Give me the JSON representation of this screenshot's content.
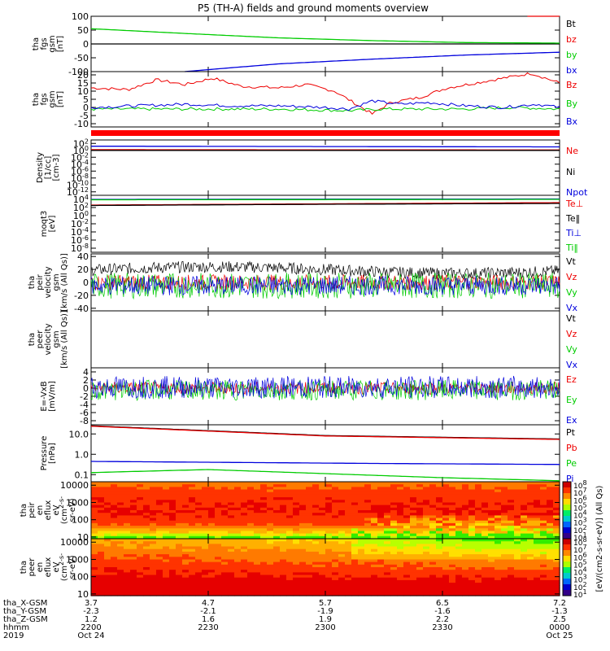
{
  "title": "P5 (TH-A) fields and ground moments overview",
  "colors": {
    "black": "#000000",
    "red": "#ee0000",
    "green": "#00cc00",
    "blue": "#0000dd",
    "red_bar": "#ff0000"
  },
  "colorbar_label": "[eV/(cm2-s-sr-eV)] (All Qs)",
  "colorbar_ticks": [
    "10^8",
    "10^7",
    "10^6",
    "10^5",
    "10^4",
    "10^3",
    "10^2",
    "10^1"
  ],
  "footer": {
    "row_labels": [
      "tha_X-GSM",
      "tha_Y-GSM",
      "tha_Z-GSM",
      "hhmm",
      "2019"
    ],
    "columns": [
      {
        "values": [
          "3.7",
          "-2.3",
          "1.2",
          "2200",
          "Oct 24"
        ]
      },
      {
        "values": [
          "4.7",
          "-2.1",
          "1.6",
          "2230",
          ""
        ]
      },
      {
        "values": [
          "5.7",
          "-1.9",
          "1.9",
          "2300",
          ""
        ]
      },
      {
        "values": [
          "6.5",
          "-1.6",
          "2.2",
          "2330",
          ""
        ]
      },
      {
        "values": [
          "7.2",
          "-1.3",
          "2.5",
          "0000",
          "Oct 25"
        ]
      }
    ]
  },
  "chart_data": [
    {
      "type": "line",
      "ylabel": [
        "tha",
        "fgs",
        "gsm",
        "[nT]"
      ],
      "ylim": [
        -100,
        100
      ],
      "ytick_values": [
        100,
        50,
        0,
        -50,
        -100
      ],
      "ytick_labels": [
        "100",
        "50",
        "0",
        "-50",
        "-100"
      ],
      "series": [
        {
          "name": "Bt",
          "color": "#000000",
          "x": [
            0,
            1
          ],
          "y": [
            0,
            0
          ]
        },
        {
          "name": "bz",
          "color": "#ee0000",
          "x": [
            0.93,
            1
          ],
          "y": [
            100,
            100
          ]
        },
        {
          "name": "by",
          "color": "#00cc00",
          "x": [
            0,
            0.2,
            0.4,
            0.6,
            0.8,
            1
          ],
          "y": [
            55,
            38,
            22,
            12,
            5,
            3
          ]
        },
        {
          "name": "bx",
          "color": "#0000dd",
          "x": [
            0.2,
            0.4,
            0.6,
            0.8,
            1
          ],
          "y": [
            -100,
            -72,
            -55,
            -40,
            -30
          ]
        }
      ]
    },
    {
      "type": "line",
      "ylabel": [
        "tha",
        "fgs",
        "gsm",
        "[nT]"
      ],
      "ylim": [
        -12,
        22
      ],
      "ytick_values": [
        20,
        15,
        10,
        5,
        0,
        -5,
        -10
      ],
      "ytick_labels": [
        "20",
        "15",
        "10",
        "5",
        "0",
        "-5",
        "-10"
      ],
      "series": [
        {
          "name": "Bz",
          "color": "#ee0000",
          "x": [
            0,
            0.08,
            0.14,
            0.2,
            0.26,
            0.32,
            0.4,
            0.46,
            0.52,
            0.56,
            0.6,
            0.64,
            0.7,
            0.76,
            0.82,
            0.88,
            0.94,
            1
          ],
          "y": [
            12,
            11,
            17,
            14,
            18,
            13,
            12,
            14,
            10,
            3,
            -4,
            3,
            6,
            12,
            15,
            18,
            21,
            15
          ]
        },
        {
          "name": "By",
          "color": "#00cc00",
          "x": [
            0,
            0.2,
            0.4,
            0.55,
            0.62,
            0.7,
            0.8,
            0.9,
            1
          ],
          "y": [
            -1,
            -1,
            -1,
            -2,
            -1,
            -1,
            -1,
            0,
            -1
          ]
        },
        {
          "name": "Bx",
          "color": "#0000dd",
          "x": [
            0,
            0.1,
            0.2,
            0.3,
            0.4,
            0.5,
            0.55,
            0.6,
            0.66,
            0.72,
            0.8,
            0.88,
            0.95,
            1
          ],
          "y": [
            0,
            1,
            2,
            1,
            1,
            0,
            -1,
            4,
            2,
            3,
            1,
            0,
            2,
            0
          ]
        }
      ]
    },
    {
      "type": "line",
      "ylabel": [
        "Density",
        "[1/cc]",
        "[cm-3]"
      ],
      "ylim": [
        -13,
        3
      ],
      "ytick_values": [
        2,
        0,
        -2,
        -4,
        -6,
        -8,
        -10,
        -12
      ],
      "ytick_labels": [
        "10^2",
        "10^0",
        "10^-2",
        "10^-4",
        "10^-6",
        "10^-8",
        "10^-10",
        "10^-12"
      ],
      "yscale": "log",
      "series": [
        {
          "name": "Ne",
          "color": "#ee0000",
          "x": [
            0,
            1
          ],
          "y": [
            0.2,
            0.1
          ]
        },
        {
          "name": "Ni",
          "color": "#000000",
          "x": [
            0,
            1
          ],
          "y": [
            0,
            0
          ]
        },
        {
          "name": "Npot",
          "color": "#0000dd",
          "x": [
            0,
            1
          ],
          "y": [
            1.2,
            1.0
          ]
        }
      ]
    },
    {
      "type": "line",
      "ylabel": [
        "moqt3",
        "[eV]"
      ],
      "ylim": [
        -9,
        5
      ],
      "ytick_values": [
        4,
        2,
        0,
        -2,
        -4,
        -6,
        -8
      ],
      "ytick_labels": [
        "10^4",
        "10^2",
        "10^0",
        "10^-2",
        "10^-4",
        "10^-6",
        "10^-8"
      ],
      "yscale": "log",
      "series": [
        {
          "name": "Te⊥",
          "color": "#ee0000",
          "x": [
            0,
            0.5,
            1
          ],
          "y": [
            2.6,
            2.9,
            3.2
          ]
        },
        {
          "name": "Te‖",
          "color": "#000000",
          "x": [
            0,
            0.5,
            1
          ],
          "y": [
            2.5,
            2.8,
            3.0
          ]
        },
        {
          "name": "Ti⊥",
          "color": "#0000dd",
          "x": [
            0,
            1
          ],
          "y": [
            4,
            4.1
          ]
        },
        {
          "name": "Ti‖",
          "color": "#00cc00",
          "x": [
            0,
            1
          ],
          "y": [
            3.9,
            4.0
          ]
        }
      ]
    },
    {
      "type": "line",
      "ylabel": [
        "tha",
        "peir",
        "velocity",
        "gsm",
        "[km/s (All Qs)]"
      ],
      "ylim": [
        -44,
        44
      ],
      "ytick_values": [
        40,
        20,
        0,
        -20,
        -40
      ],
      "ytick_labels": [
        "40",
        "20",
        "0",
        "-20",
        "-40"
      ],
      "series": [
        {
          "name": "Vt",
          "color": "#000000",
          "noise": [
            10,
            28
          ]
        },
        {
          "name": "Vz",
          "color": "#ee0000",
          "noise": [
            -12,
            12
          ]
        },
        {
          "name": "Vy",
          "color": "#00cc00",
          "noise": [
            -25,
            15
          ]
        },
        {
          "name": "Vx",
          "color": "#0000dd",
          "noise": [
            -20,
            10
          ]
        }
      ]
    },
    {
      "type": "line",
      "ylabel": [
        "tha",
        "peer",
        "velocity",
        "gsm",
        "[km/s (All Qs)]"
      ],
      "ylim": [
        -1,
        1
      ],
      "ytick_values": [],
      "ytick_labels": [],
      "series": [
        {
          "name": "Vt",
          "color": "#000000"
        },
        {
          "name": "Vz",
          "color": "#ee0000"
        },
        {
          "name": "Vy",
          "color": "#00cc00"
        },
        {
          "name": "Vx",
          "color": "#0000dd"
        }
      ]
    },
    {
      "type": "line",
      "ylabel": [
        "E=-VxB",
        "[mV/m]"
      ],
      "ylim": [
        -9,
        5
      ],
      "ytick_values": [
        4,
        2,
        0,
        -2,
        -4,
        -6,
        -8
      ],
      "ytick_labels": [
        "4",
        "2",
        "0",
        "-2",
        "-4",
        "-6",
        "-8"
      ],
      "series": [
        {
          "name": "Ez",
          "color": "#ee0000",
          "noise": [
            -1.5,
            1.5
          ]
        },
        {
          "name": "Ey",
          "color": "#00cc00",
          "noise": [
            -3,
            2
          ]
        },
        {
          "name": "Ex",
          "color": "#0000dd",
          "noise": [
            -2.5,
            3
          ]
        }
      ]
    },
    {
      "type": "line",
      "ylabel": [
        "Pressure",
        "[nPa]"
      ],
      "ylim": [
        -1.35,
        1.45
      ],
      "ytick_values": [
        1,
        0,
        -1
      ],
      "ytick_labels": [
        "10.0",
        "1.0",
        "0.1"
      ],
      "yscale": "log",
      "series": [
        {
          "name": "Pt",
          "color": "#000000",
          "x": [
            0,
            0.5,
            1
          ],
          "y": [
            1.4,
            0.92,
            0.75
          ]
        },
        {
          "name": "Pb",
          "color": "#ee0000",
          "x": [
            0,
            0.5,
            1
          ],
          "y": [
            1.38,
            0.9,
            0.73
          ]
        },
        {
          "name": "Pe",
          "color": "#00cc00",
          "x": [
            0,
            0.25,
            0.5,
            0.75,
            1
          ],
          "y": [
            -0.9,
            -0.75,
            -0.95,
            -1.15,
            -1.3
          ]
        },
        {
          "name": "Pi",
          "color": "#0000dd",
          "x": [
            0,
            0.3,
            0.6,
            1
          ],
          "y": [
            -0.35,
            -0.4,
            -0.45,
            -0.5
          ]
        }
      ]
    },
    {
      "type": "heatmap",
      "ylabel": [
        "tha",
        "peir",
        "en",
        "eflux",
        "eV",
        "(cm^2-s-",
        "sr-eV)"
      ],
      "ylim": [
        0.9,
        4.2
      ],
      "ytick_values": [
        4,
        3,
        2,
        1
      ],
      "ytick_labels": [
        "10000",
        "1000",
        "100",
        "10"
      ],
      "yscale": "log"
    },
    {
      "type": "heatmap",
      "ylabel": [
        "tha",
        "peer",
        "en",
        "eflux",
        "eV",
        "(cm^2-s-",
        "sr-eV)"
      ],
      "ylim": [
        0.9,
        4.2
      ],
      "ytick_values": [
        4,
        3,
        2,
        1
      ],
      "ytick_labels": [
        "10000",
        "1000",
        "100",
        "10"
      ],
      "yscale": "log"
    }
  ]
}
